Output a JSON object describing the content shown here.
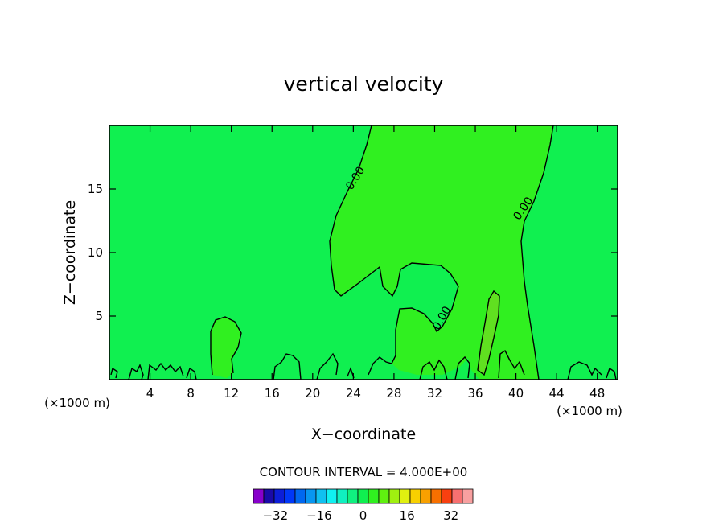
{
  "chart_data": {
    "type": "contour",
    "title": "vertical velocity",
    "xlabel": "X−coordinate",
    "ylabel": "Z−coordinate",
    "x_unit_left": "(×1000 m)",
    "x_unit_right": "(×1000 m)",
    "xlim": [
      0,
      50
    ],
    "ylim": [
      0,
      20
    ],
    "x_ticks": [
      4,
      8,
      12,
      16,
      20,
      24,
      28,
      32,
      36,
      40,
      44,
      48
    ],
    "y_ticks": [
      5,
      10,
      15
    ],
    "contour_interval_text": "CONTOUR INTERVAL = 4.000E+00",
    "contour_labels": [
      {
        "text": "0.00",
        "x": 24.5,
        "y": 15.7
      },
      {
        "text": "0.00",
        "x": 41.0,
        "y": 13.3
      },
      {
        "text": "0.00",
        "x": 33.0,
        "y": 4.7
      }
    ],
    "colorbar": {
      "labels": [
        "−32",
        "−16",
        "0",
        "16",
        "32"
      ],
      "label_values": [
        -32,
        -16,
        0,
        16,
        32
      ],
      "levels": [
        -40,
        -36,
        -32,
        -28,
        -24,
        -20,
        -16,
        -12,
        -8,
        -4,
        0,
        4,
        8,
        12,
        16,
        20,
        24,
        28,
        32,
        36,
        40
      ],
      "colors": [
        "#8800cc",
        "#1a0aa8",
        "#0c1ed8",
        "#0038f8",
        "#0068f0",
        "#0896f0",
        "#10c0f0",
        "#10f0f0",
        "#10f0c0",
        "#10f080",
        "#10f050",
        "#30f020",
        "#60f010",
        "#a0f010",
        "#e0f010",
        "#f8d000",
        "#f8a000",
        "#f87000",
        "#f84010",
        "#f87070",
        "#f8a0a0"
      ]
    },
    "fill_colors": {
      "background": "#10f050",
      "positive": "#30f020",
      "positive_high": "#60e020"
    }
  }
}
